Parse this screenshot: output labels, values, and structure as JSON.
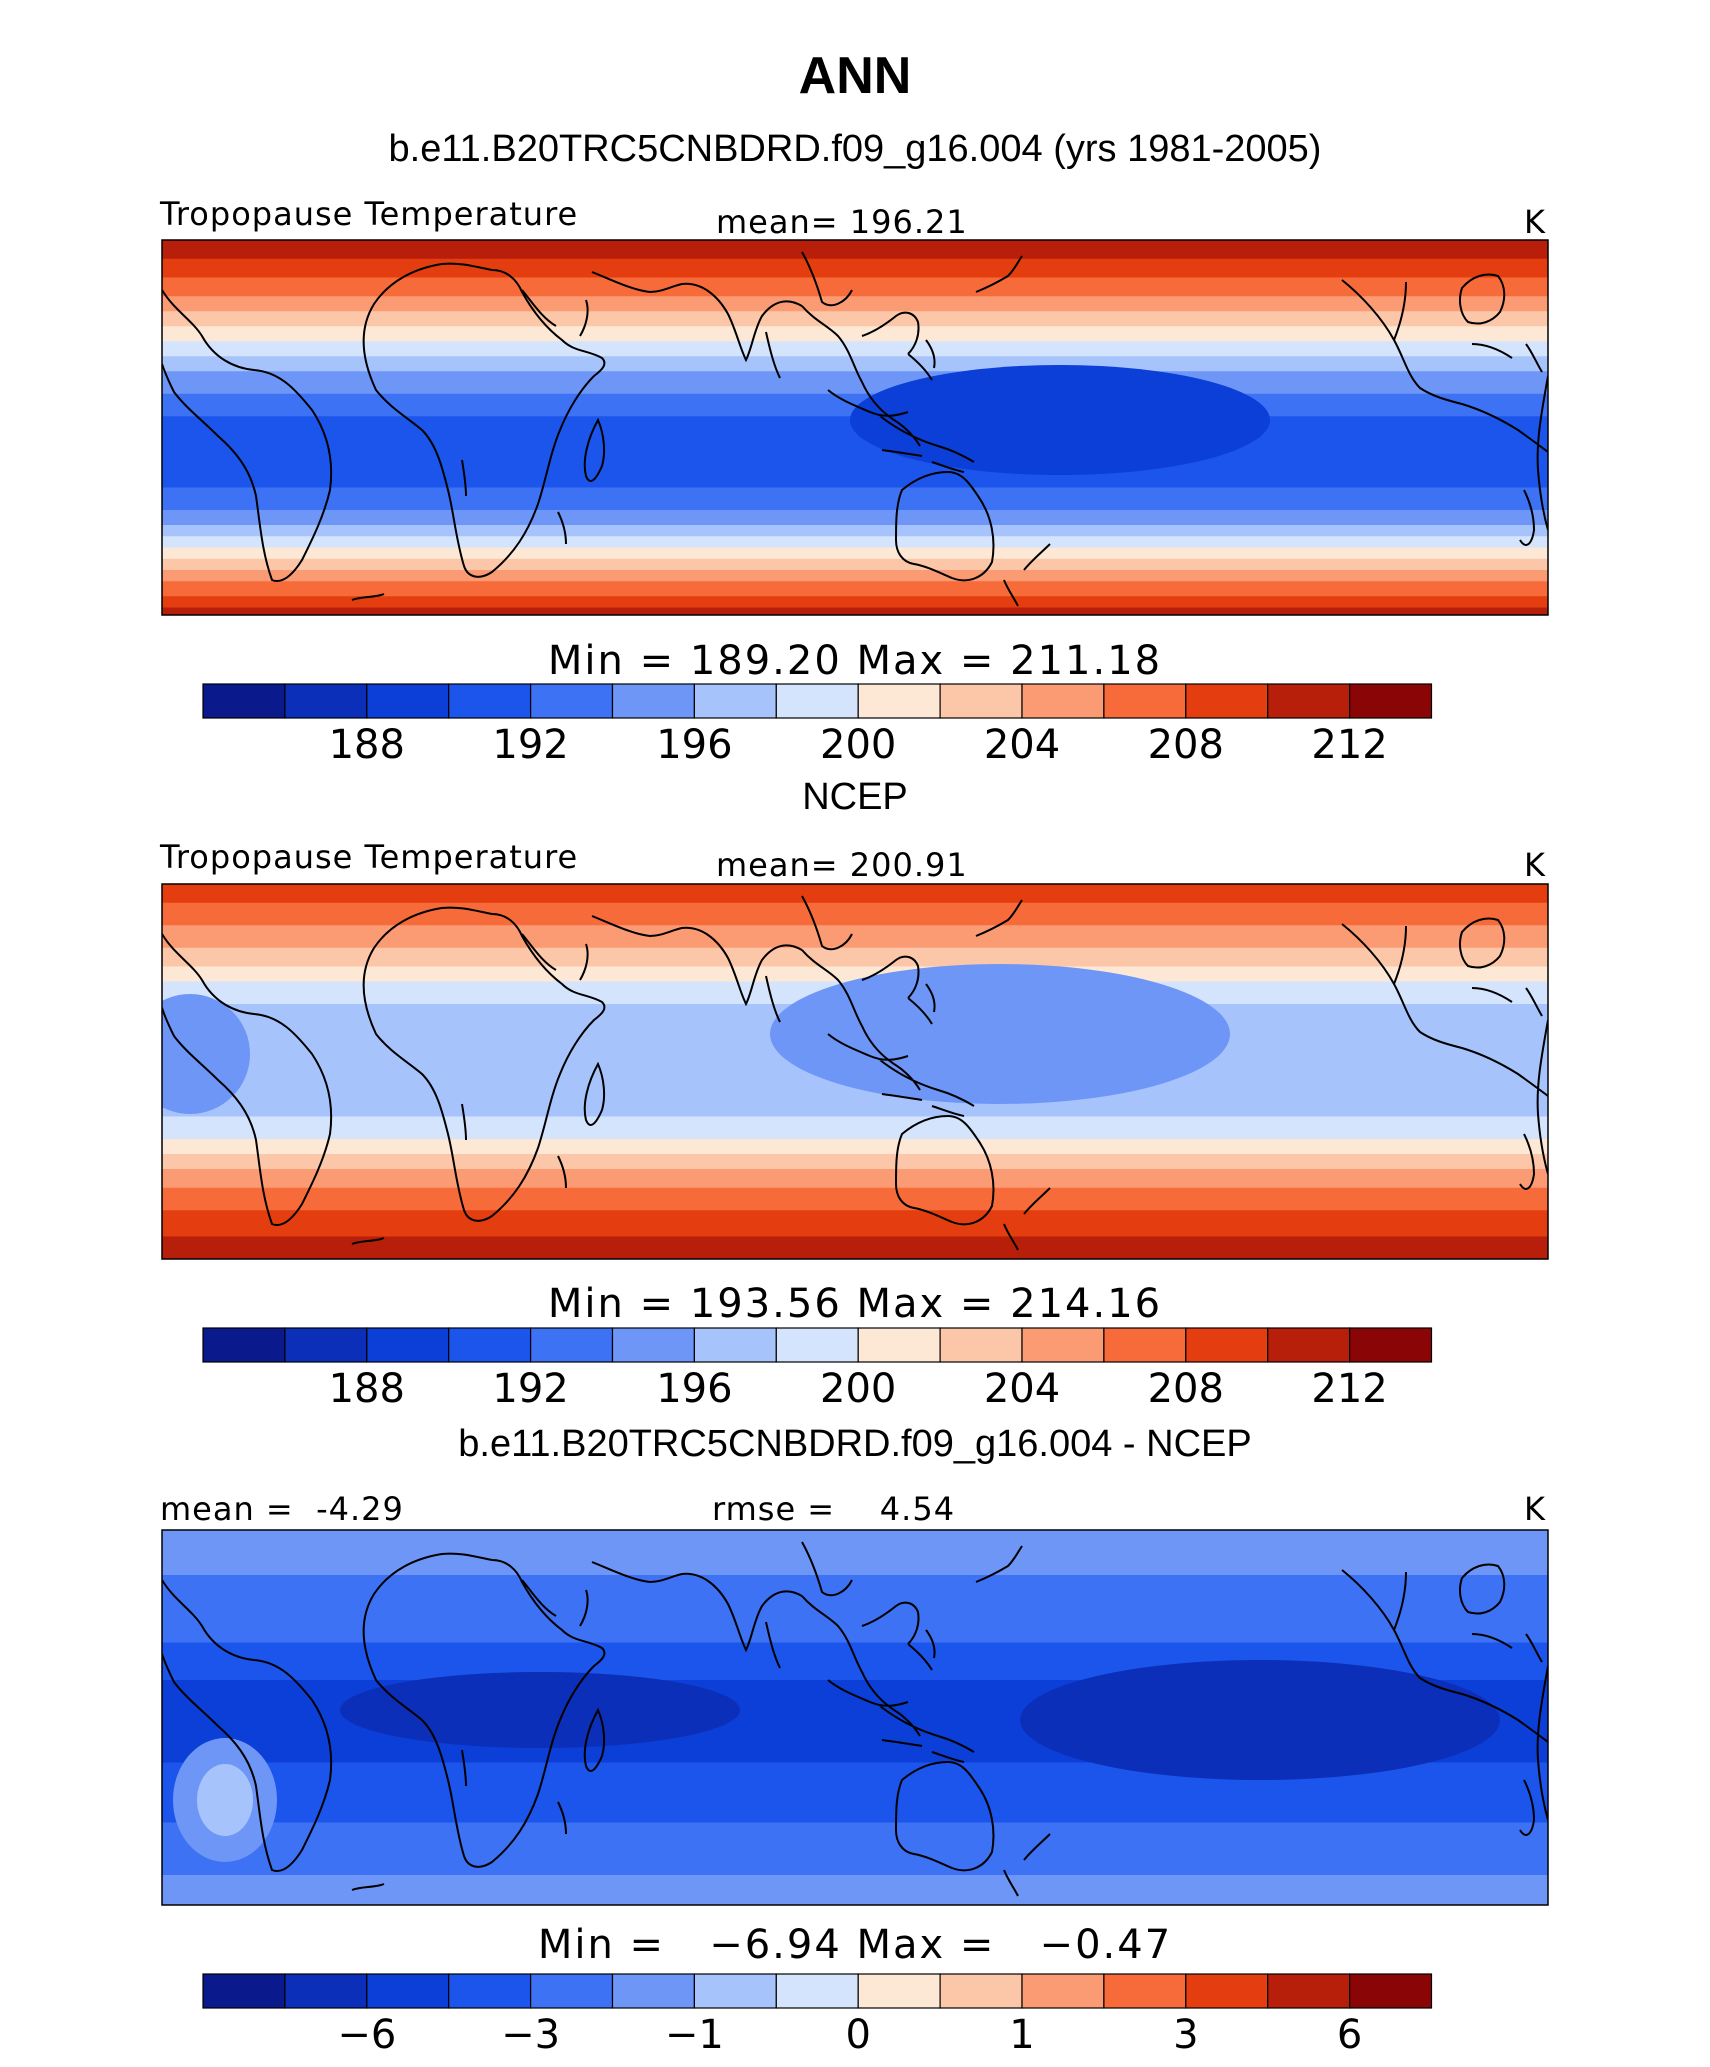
{
  "title": "ANN",
  "panels": [
    {
      "heading": "b.e11.B20TRC5CNBDRD.f09_g16.004 (yrs 1981-2005)",
      "left_label": "Tropopause Temperature",
      "center_label": "mean= 196.21",
      "units": "K",
      "minmax": "Min = 189.20 Max = 211.18"
    },
    {
      "heading": "NCEP",
      "left_label": "Tropopause Temperature",
      "center_label": "mean= 200.91",
      "units": "K",
      "minmax": "Min = 193.56 Max = 214.16"
    },
    {
      "heading": "b.e11.B20TRC5CNBDRD.f09_g16.004 - NCEP",
      "left_label": "mean =  -4.29",
      "center_label": "rmse =    4.54",
      "units": "K",
      "minmax": "Min =   −6.94 Max =   −0.47"
    }
  ],
  "colors": {
    "palette": [
      "#0a1a8c",
      "#0b2fb8",
      "#0c3ed8",
      "#1b55ec",
      "#3e72f4",
      "#6e96f7",
      "#a7c3fb",
      "#d4e4fd",
      "#fde8d6",
      "#fcc7a8",
      "#fa9b73",
      "#f76b3b",
      "#e43e10",
      "#b81f0a",
      "#8a0505"
    ]
  },
  "chart_data": [
    {
      "type": "heatmap",
      "subtype": "global map contour fill",
      "title": "b.e11.B20TRC5CNBDRD.f09_g16.004 (yrs 1981-2005)",
      "variable": "Tropopause Temperature",
      "units": "K",
      "mean": 196.21,
      "min": 189.2,
      "max": 211.18,
      "colorbar_ticks": [
        "188",
        "192",
        "196",
        "200",
        "204",
        "208",
        "212"
      ],
      "lon_range": [
        0,
        360
      ],
      "lat_range": [
        -90,
        90
      ]
    },
    {
      "type": "heatmap",
      "subtype": "global map contour fill",
      "title": "NCEP",
      "variable": "Tropopause Temperature",
      "units": "K",
      "mean": 200.91,
      "min": 193.56,
      "max": 214.16,
      "colorbar_ticks": [
        "188",
        "192",
        "196",
        "200",
        "204",
        "208",
        "212"
      ],
      "lon_range": [
        0,
        360
      ],
      "lat_range": [
        -90,
        90
      ]
    },
    {
      "type": "heatmap",
      "subtype": "global map contour fill (difference)",
      "title": "b.e11.B20TRC5CNBDRD.f09_g16.004 - NCEP",
      "units": "K",
      "mean": -4.29,
      "rmse": 4.54,
      "min": -6.94,
      "max": -0.47,
      "colorbar_ticks": [
        "−6",
        "−3",
        "−1",
        "0",
        "1",
        "3",
        "6"
      ],
      "lon_range": [
        0,
        360
      ],
      "lat_range": [
        -90,
        90
      ]
    }
  ]
}
